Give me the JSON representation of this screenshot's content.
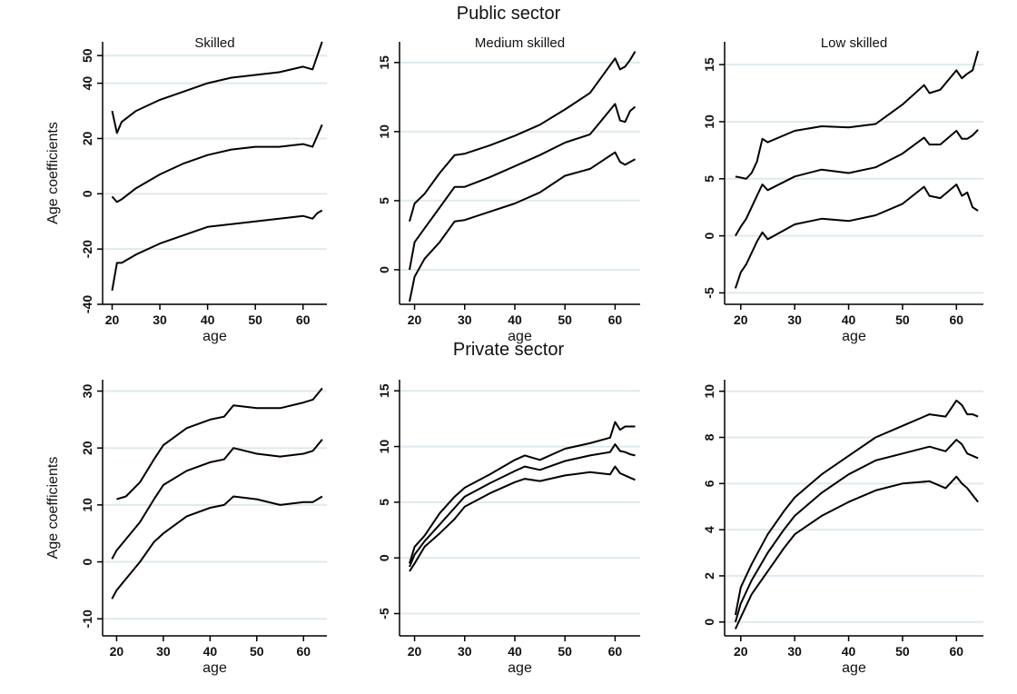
{
  "figure": {
    "row_titles": [
      "Public sector",
      "Private sector"
    ]
  },
  "chart_data": [
    {
      "id": "public-skilled",
      "type": "line",
      "title": "Skilled",
      "xlabel": "age",
      "ylabel": "Age coefficients",
      "xlim": [
        18,
        65
      ],
      "ylim": [
        -40,
        55
      ],
      "xticks": [
        20,
        30,
        40,
        50,
        60
      ],
      "yticks": [
        -40,
        -20,
        0,
        20,
        40,
        50
      ],
      "grid": true,
      "series": [
        {
          "x": [
            20,
            21,
            22,
            25,
            30,
            35,
            40,
            45,
            50,
            55,
            60,
            62,
            63,
            64
          ],
          "values": [
            30,
            22,
            26,
            30,
            34,
            37,
            40,
            42,
            43,
            44,
            46,
            45,
            50,
            55
          ]
        },
        {
          "x": [
            20,
            21,
            22,
            25,
            30,
            35,
            40,
            45,
            50,
            55,
            60,
            62,
            63,
            64
          ],
          "values": [
            -1,
            -3,
            -2,
            2,
            7,
            11,
            14,
            16,
            17,
            17,
            18,
            17,
            21,
            25
          ]
        },
        {
          "x": [
            20,
            21,
            22,
            25,
            30,
            35,
            40,
            45,
            50,
            55,
            60,
            62,
            63,
            64
          ],
          "values": [
            -35,
            -25,
            -25,
            -22,
            -18,
            -15,
            -12,
            -11,
            -10,
            -9,
            -8,
            -9,
            -7,
            -6
          ]
        }
      ]
    },
    {
      "id": "public-medium",
      "type": "line",
      "title": "Medium skilled",
      "xlabel": "age",
      "ylabel": "",
      "xlim": [
        17,
        65
      ],
      "ylim": [
        -2.5,
        16.5
      ],
      "xticks": [
        20,
        30,
        40,
        50,
        60
      ],
      "yticks": [
        0,
        5,
        10,
        15
      ],
      "grid": true,
      "series": [
        {
          "x": [
            19,
            20,
            22,
            25,
            28,
            30,
            35,
            40,
            45,
            50,
            55,
            60,
            61,
            62,
            63,
            64
          ],
          "values": [
            3.5,
            4.8,
            5.5,
            7,
            8.3,
            8.4,
            9,
            9.7,
            10.5,
            11.6,
            12.8,
            15.3,
            14.5,
            14.7,
            15.2,
            15.8
          ]
        },
        {
          "x": [
            19,
            20,
            22,
            25,
            28,
            30,
            35,
            40,
            45,
            50,
            55,
            60,
            61,
            62,
            63,
            64
          ],
          "values": [
            0,
            2,
            3,
            4.5,
            6,
            6,
            6.7,
            7.5,
            8.3,
            9.2,
            9.8,
            12,
            10.8,
            10.7,
            11.5,
            11.8
          ]
        },
        {
          "x": [
            19,
            20,
            22,
            25,
            28,
            30,
            35,
            40,
            45,
            50,
            55,
            60,
            61,
            62,
            63,
            64
          ],
          "values": [
            -2.3,
            -0.5,
            0.8,
            2,
            3.5,
            3.6,
            4.2,
            4.8,
            5.6,
            6.8,
            7.3,
            8.5,
            7.8,
            7.6,
            7.8,
            8
          ]
        }
      ]
    },
    {
      "id": "public-low",
      "type": "line",
      "title": "Low skilled",
      "xlabel": "age",
      "ylabel": "",
      "xlim": [
        17,
        65
      ],
      "ylim": [
        -6,
        17
      ],
      "xticks": [
        20,
        30,
        40,
        50,
        60
      ],
      "yticks": [
        -5,
        0,
        5,
        10,
        15
      ],
      "grid": true,
      "series": [
        {
          "x": [
            19,
            20,
            21,
            22,
            23,
            24,
            25,
            30,
            35,
            40,
            45,
            50,
            54,
            55,
            57,
            60,
            61,
            62,
            63,
            64
          ],
          "values": [
            5.2,
            5.1,
            5,
            5.5,
            6.5,
            8.5,
            8.2,
            9.2,
            9.6,
            9.5,
            9.8,
            11.5,
            13.2,
            12.5,
            12.8,
            14.5,
            13.8,
            14.2,
            14.5,
            16.2
          ]
        },
        {
          "x": [
            19,
            20,
            21,
            22,
            23,
            24,
            25,
            30,
            35,
            40,
            45,
            50,
            54,
            55,
            57,
            60,
            61,
            62,
            63,
            64
          ],
          "values": [
            0,
            0.8,
            1.5,
            2.5,
            3.5,
            4.5,
            4,
            5.2,
            5.8,
            5.5,
            6,
            7.2,
            8.6,
            8,
            8,
            9.2,
            8.5,
            8.5,
            8.8,
            9.3
          ]
        },
        {
          "x": [
            19,
            20,
            21,
            22,
            23,
            24,
            25,
            30,
            35,
            40,
            45,
            50,
            54,
            55,
            57,
            60,
            61,
            62,
            63,
            64
          ],
          "values": [
            -4.6,
            -3.2,
            -2.5,
            -1.5,
            -0.5,
            0.3,
            -0.3,
            1,
            1.5,
            1.3,
            1.8,
            2.8,
            4.3,
            3.5,
            3.3,
            4.5,
            3.5,
            3.8,
            2.5,
            2.2
          ]
        }
      ]
    },
    {
      "id": "private-skilled",
      "type": "line",
      "title": "",
      "xlabel": "age",
      "ylabel": "Age coefficients",
      "xlim": [
        17,
        65
      ],
      "ylim": [
        -13,
        32
      ],
      "xticks": [
        20,
        30,
        40,
        50,
        60
      ],
      "yticks": [
        -10,
        0,
        10,
        20,
        30
      ],
      "grid": true,
      "series": [
        {
          "x": [
            20,
            22,
            25,
            28,
            30,
            35,
            40,
            43,
            45,
            50,
            55,
            60,
            62,
            63,
            64
          ],
          "values": [
            11,
            11.5,
            14,
            18,
            20.5,
            23.5,
            25,
            25.5,
            27.5,
            27,
            27,
            28,
            28.5,
            29.5,
            30.5
          ]
        },
        {
          "x": [
            19,
            20,
            22,
            25,
            28,
            30,
            35,
            40,
            43,
            45,
            50,
            55,
            60,
            62,
            63,
            64
          ],
          "values": [
            0.5,
            2,
            4,
            7,
            11,
            13.5,
            16,
            17.5,
            18,
            20,
            19,
            18.5,
            19,
            19.5,
            20.5,
            21.5
          ]
        },
        {
          "x": [
            19,
            20,
            22,
            25,
            28,
            30,
            35,
            40,
            43,
            45,
            50,
            55,
            60,
            62,
            63,
            64
          ],
          "values": [
            -6.5,
            -5,
            -3,
            0,
            3.5,
            5,
            8,
            9.5,
            10,
            11.5,
            11,
            10,
            10.5,
            10.5,
            11,
            11.5
          ]
        }
      ]
    },
    {
      "id": "private-medium",
      "type": "line",
      "title": "",
      "xlabel": "age",
      "ylabel": "",
      "xlim": [
        17,
        65
      ],
      "ylim": [
        -7,
        16
      ],
      "xticks": [
        20,
        30,
        40,
        50,
        60
      ],
      "yticks": [
        -5,
        0,
        5,
        10,
        15
      ],
      "grid": true,
      "series": [
        {
          "x": [
            19,
            20,
            22,
            25,
            28,
            30,
            35,
            40,
            42,
            45,
            50,
            55,
            59,
            60,
            61,
            62,
            63,
            64
          ],
          "values": [
            -0.5,
            1,
            2,
            4,
            5.5,
            6.3,
            7.5,
            8.8,
            9.2,
            8.8,
            9.8,
            10.3,
            10.8,
            12.2,
            11.5,
            11.8,
            11.8,
            11.8
          ]
        },
        {
          "x": [
            19,
            20,
            22,
            25,
            28,
            30,
            35,
            40,
            42,
            45,
            50,
            55,
            59,
            60,
            61,
            62,
            63,
            64
          ],
          "values": [
            -0.8,
            0.3,
            1.5,
            3,
            4.5,
            5.5,
            6.7,
            7.8,
            8.2,
            7.9,
            8.7,
            9.2,
            9.5,
            10.2,
            9.6,
            9.5,
            9.3,
            9.2
          ]
        },
        {
          "x": [
            19,
            20,
            22,
            25,
            28,
            30,
            35,
            40,
            42,
            45,
            50,
            55,
            59,
            60,
            61,
            62,
            63,
            64
          ],
          "values": [
            -1.2,
            -0.5,
            1,
            2.2,
            3.5,
            4.6,
            5.8,
            6.8,
            7.1,
            6.9,
            7.4,
            7.7,
            7.5,
            8.2,
            7.6,
            7.4,
            7.2,
            7
          ]
        }
      ]
    },
    {
      "id": "private-low",
      "type": "line",
      "title": "",
      "xlabel": "age",
      "ylabel": "",
      "xlim": [
        17,
        65
      ],
      "ylim": [
        -0.6,
        10.5
      ],
      "xticks": [
        20,
        30,
        40,
        50,
        60
      ],
      "yticks": [
        0,
        2,
        4,
        6,
        8,
        10
      ],
      "grid": true,
      "series": [
        {
          "x": [
            19,
            20,
            22,
            25,
            28,
            30,
            35,
            40,
            45,
            50,
            55,
            58,
            60,
            61,
            62,
            63,
            64
          ],
          "values": [
            0.3,
            1.5,
            2.5,
            3.8,
            4.8,
            5.4,
            6.4,
            7.2,
            8,
            8.5,
            9,
            8.9,
            9.6,
            9.4,
            9,
            9,
            8.9
          ]
        },
        {
          "x": [
            19,
            20,
            22,
            25,
            28,
            30,
            35,
            40,
            45,
            50,
            55,
            58,
            60,
            61,
            62,
            63,
            64
          ],
          "values": [
            0,
            0.8,
            1.8,
            3,
            4,
            4.6,
            5.6,
            6.4,
            7,
            7.3,
            7.6,
            7.4,
            7.9,
            7.7,
            7.3,
            7.2,
            7.1
          ]
        },
        {
          "x": [
            19,
            20,
            22,
            25,
            28,
            30,
            35,
            40,
            45,
            50,
            55,
            58,
            60,
            61,
            62,
            63,
            64
          ],
          "values": [
            -0.3,
            0.2,
            1.2,
            2.2,
            3.2,
            3.8,
            4.6,
            5.2,
            5.7,
            6,
            6.1,
            5.8,
            6.3,
            6,
            5.8,
            5.5,
            5.2
          ]
        }
      ]
    }
  ]
}
